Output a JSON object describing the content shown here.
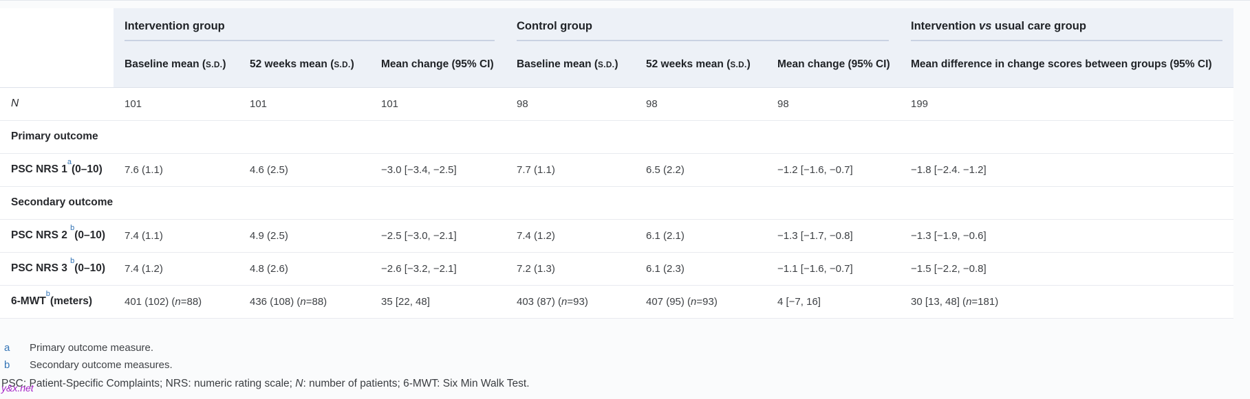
{
  "table": {
    "groups": [
      {
        "label": "Intervention group",
        "span": 3
      },
      {
        "label": "Control group",
        "span": 3
      },
      {
        "label": "Intervention *vs* usual care group",
        "span": 1
      }
    ],
    "column_headers": [
      "Baseline mean (~s.d.~)",
      "52 weeks mean (~s.d.~)",
      "Mean change (95% CI)",
      "Baseline mean (~s.d.~)",
      "52 weeks mean (~s.d.~)",
      "Mean change (95% CI)",
      "Mean difference in change scores between groups (95% CI)"
    ],
    "rows": [
      {
        "type": "data",
        "label": "*N*",
        "label_style": "italic",
        "cells": [
          "101",
          "101",
          "101",
          "98",
          "98",
          "98",
          "199"
        ]
      },
      {
        "type": "section",
        "label": "Primary outcome"
      },
      {
        "type": "data",
        "label": "PSC NRS 1^a^(0–10)",
        "label_style": "bold",
        "cells": [
          "7.6 (1.1)",
          "4.6 (2.5)",
          "−3.0 [−3.4, −2.5]",
          "7.7 (1.1)",
          "6.5 (2.2)",
          "−1.2 [−1.6, −0.7]",
          "−1.8 [−2.4. −1.2]"
        ]
      },
      {
        "type": "section",
        "label": "Secondary outcome"
      },
      {
        "type": "data",
        "label": "PSC NRS 2 ^b^(0–10)",
        "label_style": "bold",
        "cells": [
          "7.4 (1.1)",
          "4.9 (2.5)",
          "−2.5 [−3.0, −2.1]",
          "7.4 (1.2)",
          "6.1 (2.1)",
          "−1.3 [−1.7, −0.8]",
          "−1.3 [−1.9, −0.6]"
        ]
      },
      {
        "type": "data",
        "label": "PSC NRS 3 ^b^(0–10)",
        "label_style": "bold",
        "cells": [
          "7.4 (1.2)",
          "4.8 (2.6)",
          "−2.6 [−3.2, −2.1]",
          "7.2 (1.3)",
          "6.1 (2.3)",
          "−1.1 [−1.6, −0.7]",
          "−1.5 [−2.2, −0.8]"
        ]
      },
      {
        "type": "data",
        "label": "6-MWT^b^(meters)",
        "label_style": "bold",
        "cells": [
          "401 (102) (*n*=88)",
          "436 (108) (*n*=88)",
          "35 [22, 48]",
          "403 (87) (*n*=93)",
          "407 (95) (*n*=93)",
          "4 [−7, 16]",
          "30 [13, 48] (*n*=181)"
        ]
      }
    ]
  },
  "footnotes": [
    {
      "marker": "a",
      "text": "Primary outcome measure."
    },
    {
      "marker": "b",
      "text": "Secondary outcome measures."
    }
  ],
  "abbreviations": "PSC: Patient-Specific Complaints; NRS: numeric rating scale; *N*: number of patients; 6-MWT: Six Min Walk Test.",
  "watermark": "y&x.net",
  "colors": {
    "header_band": "#edf1f7",
    "group_rule": "#c9d2e2",
    "row_border": "#e8eaef",
    "footnote_link": "#3273b5",
    "watermark_purple": "#a21cc5"
  }
}
